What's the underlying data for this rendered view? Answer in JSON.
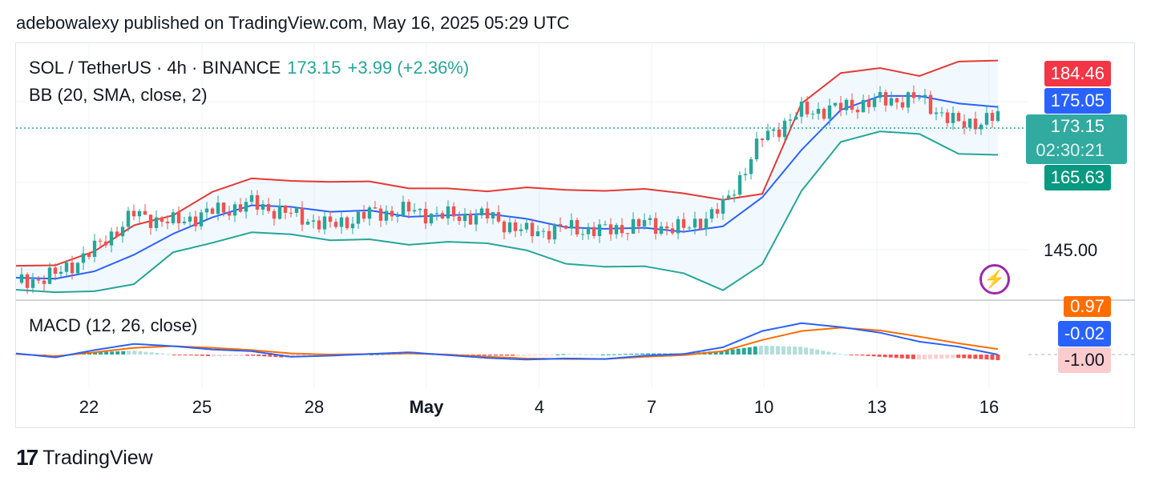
{
  "header": {
    "publisher_line": "adebowalexy published on TradingView.com, May 16, 2025 05:29 UTC"
  },
  "legend": {
    "symbol": "SOL / TetherUS · 4h · BINANCE",
    "price": "173.15",
    "change": "+3.99 (+2.36%)",
    "bb": "BB (20, SMA, close, 2)",
    "macd": "MACD (12, 26, close)"
  },
  "price_tags": {
    "bb_upper": "184.46",
    "bb_basis": "175.05",
    "last_price": "173.15",
    "countdown": "02:30:21",
    "bb_lower": "165.63",
    "axis_145": "145.00",
    "macd_signal": "0.97",
    "macd_line": "-0.02",
    "macd_hist": "-1.00"
  },
  "x_ticks": [
    "22",
    "25",
    "28",
    "May",
    "4",
    "7",
    "10",
    "13",
    "16"
  ],
  "colors": {
    "up": "#26a69a",
    "down": "#ef5350",
    "bb_upper": "#e53935",
    "bb_basis": "#2962ff",
    "bb_lower": "#26a69a",
    "macd": "#2962ff",
    "signal": "#ff6d00"
  },
  "footer": {
    "brand": "TradingView",
    "logo_icon": "tradingview-logo-icon"
  },
  "chart_data": {
    "type": "candlestick",
    "title": "SOL / TetherUS · 4h · BINANCE",
    "ylim": [
      137,
      187
    ],
    "x_labels": [
      "22",
      "25",
      "28",
      "May",
      "4",
      "7",
      "10",
      "13",
      "16"
    ],
    "bb_upper": [
      143.4,
      143.5,
      146.3,
      151.5,
      153.5,
      158.2,
      160.9,
      160.4,
      160.2,
      160.3,
      158.9,
      158.9,
      158.3,
      159.1,
      158.6,
      158.4,
      158.8,
      157.9,
      156.6,
      157.8,
      175.9,
      182.0,
      183.0,
      181.4,
      184.3,
      184.5
    ],
    "bb_basis": [
      141.0,
      140.8,
      142.3,
      145.6,
      149.8,
      153.1,
      155.5,
      155.2,
      154.2,
      154.5,
      153.2,
      153.5,
      153.8,
      152.8,
      151.1,
      150.8,
      151.0,
      150.2,
      151.3,
      157.1,
      166.6,
      174.6,
      177.4,
      177.4,
      175.9,
      175.2
    ],
    "bb_lower": [
      138.6,
      138.1,
      138.3,
      139.7,
      146.1,
      148.0,
      150.1,
      149.7,
      148.5,
      148.7,
      147.6,
      148.2,
      147.9,
      146.5,
      143.8,
      143.2,
      143.3,
      141.9,
      138.5,
      143.7,
      158.4,
      168.2,
      170.3,
      169.8,
      165.8,
      165.6
    ],
    "close": [
      140.0,
      141.5,
      146.7,
      153.7,
      152.0,
      154.2,
      155.8,
      153.7,
      151.4,
      153.8,
      154.4,
      153.3,
      153.4,
      150.0,
      151.0,
      150.4,
      151.8,
      150.7,
      155.1,
      169.0,
      174.2,
      175.0,
      176.5,
      176.9,
      171.6,
      173.15
    ],
    "macd_line": [
      0.2,
      -0.5,
      0.8,
      1.9,
      1.5,
      0.9,
      0.6,
      -0.4,
      -0.2,
      0.1,
      0.4,
      -0.1,
      -0.6,
      -0.9,
      -0.7,
      -0.8,
      -0.2,
      0.1,
      1.3,
      4.2,
      5.6,
      4.9,
      3.9,
      2.3,
      1.4,
      -0.02
    ],
    "macd_signal": [
      0.1,
      -0.3,
      0.4,
      1.2,
      1.5,
      1.2,
      0.8,
      0.2,
      0.0,
      0.1,
      0.2,
      0.0,
      -0.4,
      -0.7,
      -0.8,
      -0.8,
      -0.4,
      -0.1,
      0.6,
      2.6,
      4.2,
      4.8,
      4.3,
      3.2,
      2.0,
      0.97
    ],
    "macd_hist": [
      0.1,
      -0.2,
      0.4,
      0.7,
      0.0,
      -0.3,
      -0.2,
      -0.6,
      -0.2,
      0.0,
      0.2,
      -0.1,
      -0.2,
      -0.2,
      0.1,
      0.0,
      0.2,
      0.2,
      0.7,
      1.6,
      1.4,
      0.1,
      -0.4,
      -0.9,
      -0.6,
      -1.0
    ]
  }
}
